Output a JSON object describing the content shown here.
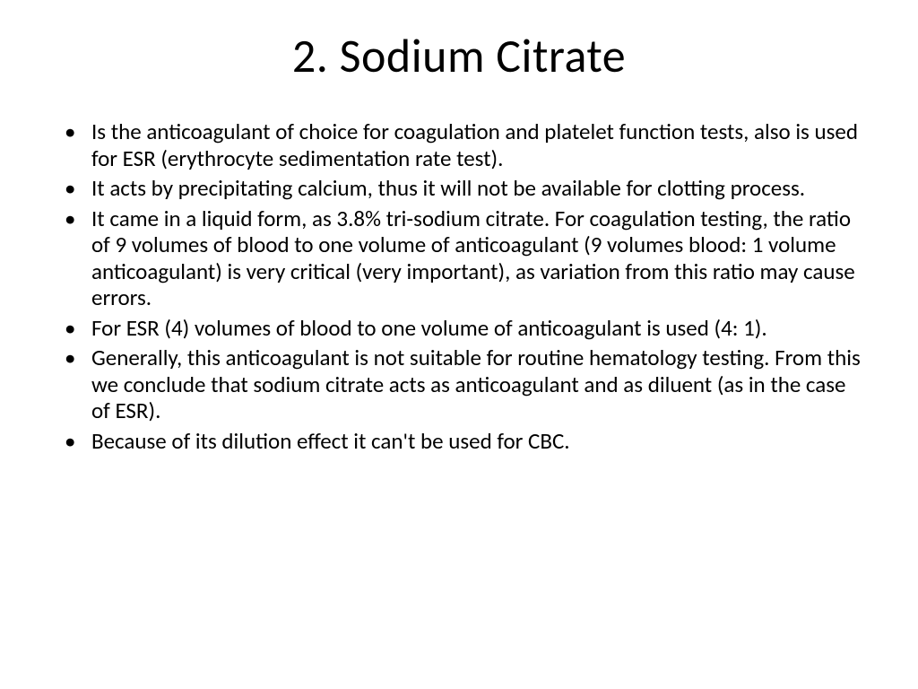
{
  "slide": {
    "title": "2. Sodium Citrate",
    "bullets": [
      "Is the anticoagulant of choice for coagulation and platelet function tests, also is used for ESR (erythrocyte sedimentation rate test).",
      " It acts by precipitating calcium, thus it will not be available for clotting process.",
      " It came in a liquid form, as 3.8% tri-sodium citrate. For coagulation testing, the ratio of 9 volumes of blood to one volume of anticoagulant (9 volumes blood: 1 volume anticoagulant) is very critical (very important), as variation from this ratio may cause errors.",
      " For ESR (4) volumes of blood to one volume of anticoagulant is used (4: 1).",
      "Generally, this anticoagulant is not suitable for routine hematology testing. From this we conclude that sodium citrate acts as anticoagulant and as diluent (as in the case of ESR).",
      "Because of its dilution effect it can't be used for CBC."
    ]
  },
  "style": {
    "background_color": "#ffffff",
    "text_color": "#000000",
    "title_fontsize": 52,
    "body_fontsize": 25,
    "font_family": "Calibri"
  }
}
